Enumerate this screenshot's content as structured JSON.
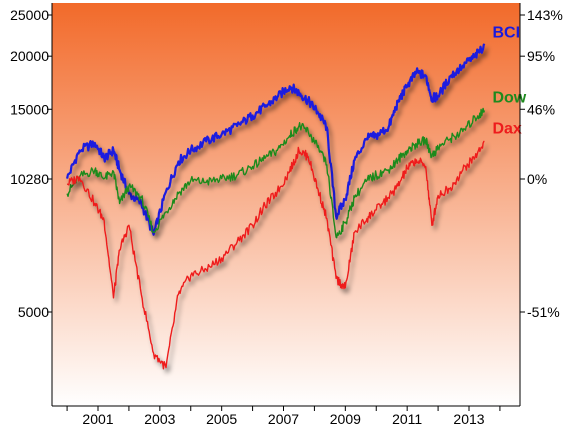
{
  "chart_data": {
    "type": "line",
    "title": "",
    "xlabel": "",
    "ylabel": "",
    "y_scale": "log",
    "ylim": [
      3500,
      26000
    ],
    "xlim": [
      2000.0,
      2014.2
    ],
    "grid": false,
    "legend": "inline-right",
    "y_ticks_left": [
      25000,
      20000,
      15000,
      10280,
      5000
    ],
    "y_ticks_right": [
      {
        "value": 25000,
        "label": "143%"
      },
      {
        "value": 20000,
        "label": "95%"
      },
      {
        "value": 15000,
        "label": "46%"
      },
      {
        "value": 10280,
        "label": "0%"
      },
      {
        "value": 5000,
        "label": "-51%"
      }
    ],
    "x_ticks": [
      2001,
      2003,
      2005,
      2007,
      2009,
      2011,
      2013
    ],
    "background_gradient": [
      "#f26a2a",
      "#ffffff"
    ],
    "series": [
      {
        "name": "BCI",
        "color": "#1a1adf",
        "x": [
          2000.0,
          2000.4,
          2000.9,
          2001.2,
          2001.5,
          2001.7,
          2002.0,
          2002.4,
          2002.8,
          2003.2,
          2003.6,
          2004.0,
          2004.5,
          2005.0,
          2005.5,
          2006.0,
          2006.4,
          2006.8,
          2007.2,
          2007.5,
          2007.8,
          2008.1,
          2008.4,
          2008.7,
          2009.0,
          2009.3,
          2009.7,
          2010.0,
          2010.4,
          2010.7,
          2011.0,
          2011.3,
          2011.6,
          2011.8,
          2012.0,
          2012.4,
          2012.8,
          2013.2,
          2013.5
        ],
        "values": [
          10300,
          12000,
          12500,
          11500,
          12000,
          10800,
          9500,
          9000,
          7600,
          9600,
          11300,
          12000,
          12600,
          13100,
          13700,
          14500,
          15200,
          16000,
          17000,
          16400,
          15700,
          14800,
          13600,
          8400,
          9200,
          11400,
          12800,
          13000,
          13600,
          15600,
          17000,
          18300,
          18000,
          15900,
          16100,
          17900,
          19000,
          20000,
          21200
        ]
      },
      {
        "name": "Dow",
        "color": "#1e8a1e",
        "x": [
          2000.0,
          2000.4,
          2000.9,
          2001.2,
          2001.5,
          2001.7,
          2002.0,
          2002.4,
          2002.8,
          2003.2,
          2003.6,
          2004.0,
          2004.5,
          2005.0,
          2005.5,
          2006.0,
          2006.4,
          2006.8,
          2007.2,
          2007.5,
          2007.8,
          2008.1,
          2008.4,
          2008.7,
          2009.0,
          2009.3,
          2009.7,
          2010.0,
          2010.4,
          2010.7,
          2011.0,
          2011.3,
          2011.6,
          2011.8,
          2012.0,
          2012.4,
          2012.8,
          2013.2,
          2013.5
        ],
        "values": [
          9500,
          10400,
          10800,
          10300,
          10700,
          9000,
          9900,
          9300,
          7700,
          8600,
          9500,
          10200,
          10100,
          10300,
          10500,
          11000,
          11500,
          12000,
          13000,
          13700,
          13300,
          12200,
          11100,
          7500,
          8100,
          9300,
          10200,
          10500,
          10800,
          11400,
          12000,
          12400,
          12700,
          11600,
          12200,
          12800,
          13300,
          14300,
          14900
        ]
      },
      {
        "name": "Dax",
        "color": "#ee1c1c",
        "x": [
          2000.0,
          2000.4,
          2000.9,
          2001.2,
          2001.5,
          2001.7,
          2002.0,
          2002.4,
          2002.8,
          2003.2,
          2003.6,
          2004.0,
          2004.5,
          2005.0,
          2005.5,
          2006.0,
          2006.4,
          2006.8,
          2007.2,
          2007.5,
          2007.8,
          2008.1,
          2008.4,
          2008.7,
          2009.0,
          2009.3,
          2009.7,
          2010.0,
          2010.4,
          2010.7,
          2011.0,
          2011.3,
          2011.6,
          2011.8,
          2012.0,
          2012.4,
          2012.8,
          2013.2,
          2013.5
        ],
        "values": [
          10000,
          10400,
          9000,
          8200,
          5400,
          7000,
          8000,
          5500,
          4000,
          3700,
          5500,
          6100,
          6300,
          6700,
          7300,
          8000,
          8900,
          9600,
          10700,
          12000,
          11600,
          9800,
          8300,
          6000,
          5700,
          7700,
          8300,
          8700,
          9300,
          9900,
          10900,
          11400,
          11000,
          8000,
          9400,
          9800,
          10800,
          11600,
          12600
        ]
      }
    ]
  }
}
